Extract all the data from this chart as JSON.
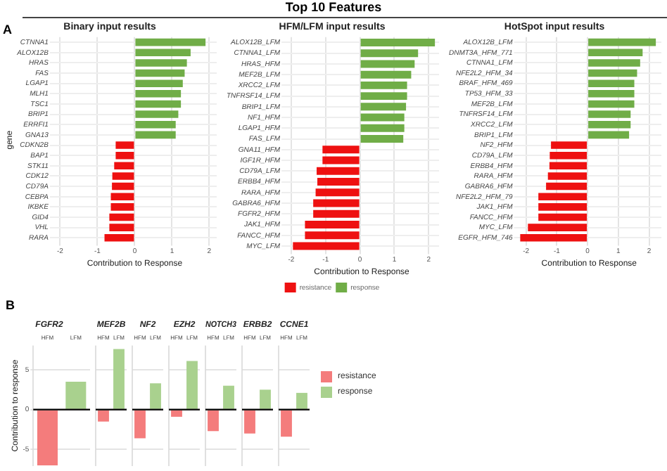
{
  "chart_data": [
    {
      "type": "bar",
      "orientation": "horizontal",
      "title": "Binary input results",
      "annotations": [
        "A"
      ],
      "xlabel": "Contribution to Response",
      "ylabel": "gene",
      "grid": true,
      "xlim": [
        -2.2,
        2.2
      ],
      "xticks": [
        -2,
        -1,
        0,
        1,
        2
      ],
      "categories": [
        "CTNNA1",
        "ALOX12B",
        "HRAS",
        "FAS",
        "LGAP1",
        "MLH1",
        "TSC1",
        "BRIP1",
        "ERRFI1",
        "GNA13",
        "CDKN2B",
        "BAP1",
        "STK11",
        "CDK12",
        "CD79A",
        "CEBPA",
        "IKBKE",
        "GID4",
        "VHL",
        "RARA"
      ],
      "values": [
        1.9,
        1.5,
        1.4,
        1.34,
        1.29,
        1.24,
        1.24,
        1.17,
        1.1,
        1.1,
        -0.51,
        -0.51,
        -0.55,
        -0.6,
        -0.61,
        -0.64,
        -0.64,
        -0.68,
        -0.68,
        -0.81
      ],
      "colors": [
        "#70ad47",
        "#70ad47",
        "#70ad47",
        "#70ad47",
        "#70ad47",
        "#70ad47",
        "#70ad47",
        "#70ad47",
        "#70ad47",
        "#70ad47",
        "#ee1111",
        "#ee1111",
        "#ee1111",
        "#ee1111",
        "#ee1111",
        "#ee1111",
        "#ee1111",
        "#ee1111",
        "#ee1111",
        "#ee1111"
      ]
    },
    {
      "type": "bar",
      "orientation": "horizontal",
      "title": "HFM/LFM input results",
      "annotations": [
        "Top 10 Features"
      ],
      "xlabel": "Contribution to Response",
      "grid": true,
      "legend": "bottom",
      "xlim": [
        -2.2,
        2.3
      ],
      "xticks": [
        -2,
        -1,
        0,
        1,
        2
      ],
      "categories": [
        "ALOX12B_LFM",
        "CTNNA1_LFM",
        "HRAS_HFM",
        "MEF2B_LFM",
        "XRCC2_LFM",
        "TNFRSF14_LFM",
        "BRIP1_LFM",
        "NF1_HFM",
        "LGAP1_HFM",
        "FAS_LFM",
        "GNA11_HFM",
        "IGF1R_HFM",
        "CD79A_LFM",
        "ERBB4_HFM",
        "RARA_HFM",
        "GABRA6_HFM",
        "FGFR2_HFM",
        "JAK1_HFM",
        "FANCC_HFM",
        "MYC_LFM"
      ],
      "series": [
        {
          "name": "resistance",
          "color": "#ee1111",
          "values": [
            null,
            null,
            null,
            null,
            null,
            null,
            null,
            null,
            null,
            null,
            -1.09,
            -1.09,
            -1.26,
            -1.24,
            -1.29,
            -1.36,
            -1.36,
            -1.6,
            -1.6,
            -1.95
          ]
        },
        {
          "name": "response",
          "color": "#70ad47",
          "values": [
            2.18,
            1.69,
            1.59,
            1.49,
            1.37,
            1.37,
            1.34,
            1.29,
            1.29,
            1.26,
            null,
            null,
            null,
            null,
            null,
            null,
            null,
            null,
            null,
            null
          ]
        }
      ]
    },
    {
      "type": "bar",
      "orientation": "horizontal",
      "title": "HotSpot input results",
      "xlabel": "Contribution to Response",
      "grid": true,
      "xlim": [
        -2.3,
        2.4
      ],
      "xticks": [
        -2,
        -1,
        0,
        1,
        2
      ],
      "categories": [
        "ALOX12B_LFM",
        "DNMT3A_HFM_771",
        "CTNNA1_LFM",
        "NFE2L2_HFM_34",
        "BRAF_HFM_469",
        "TP53_HFM_33",
        "MEF2B_LFM",
        "TNFRSF14_LFM",
        "XRCC2_LFM",
        "BRIP1_LFM",
        "NF2_HFM",
        "CD79A_LFM",
        "ERBB4_HFM",
        "RARA_HFM",
        "GABRA6_HFM",
        "NFE2L2_HFM_79",
        "JAK1_HFM",
        "FANCC_HFM",
        "MYC_LFM",
        "EGFR_HFM_746"
      ],
      "values": [
        2.22,
        1.79,
        1.71,
        1.61,
        1.52,
        1.52,
        1.52,
        1.4,
        1.4,
        1.35,
        -1.19,
        -1.23,
        -1.24,
        -1.29,
        -1.35,
        -1.6,
        -1.6,
        -1.6,
        -1.94,
        -2.19
      ],
      "colors": [
        "#70ad47",
        "#70ad47",
        "#70ad47",
        "#70ad47",
        "#70ad47",
        "#70ad47",
        "#70ad47",
        "#70ad47",
        "#70ad47",
        "#70ad47",
        "#ee1111",
        "#ee1111",
        "#ee1111",
        "#ee1111",
        "#ee1111",
        "#ee1111",
        "#ee1111",
        "#ee1111",
        "#ee1111",
        "#ee1111"
      ]
    },
    {
      "type": "bar",
      "title": "FGFR2",
      "annotations": [
        "B"
      ],
      "ylabel": "Contribution to response",
      "grid": "y",
      "ylim": [
        -7,
        8
      ],
      "yticks": [
        -5,
        0,
        5
      ],
      "categories": [
        "HFM",
        "LFM"
      ],
      "values": [
        -7,
        3.5
      ],
      "colors": [
        "#f47c7c",
        "#a9d18e"
      ],
      "ref_lines": [
        {
          "axis": "y",
          "value": 0,
          "color": "#000000"
        }
      ]
    },
    {
      "type": "bar",
      "title": "MEF2B",
      "grid": "y",
      "tick_labels": "x",
      "ylim": [
        -7,
        8
      ],
      "yticks": [
        -5,
        0,
        5
      ],
      "categories": [
        "HFM",
        "LFM"
      ],
      "values": [
        -1.5,
        7.6
      ],
      "colors": [
        "#f47c7c",
        "#a9d18e"
      ],
      "ref_lines": [
        {
          "axis": "y",
          "value": 0,
          "color": "#000000"
        }
      ]
    },
    {
      "type": "bar",
      "title": "NF2",
      "grid": "y",
      "tick_labels": "x",
      "ylim": [
        -7,
        8
      ],
      "yticks": [
        -5,
        0,
        5
      ],
      "categories": [
        "HFM",
        "LFM"
      ],
      "values": [
        -3.6,
        3.3
      ],
      "colors": [
        "#f47c7c",
        "#a9d18e"
      ],
      "ref_lines": [
        {
          "axis": "y",
          "value": 0,
          "color": "#000000"
        }
      ]
    },
    {
      "type": "bar",
      "title": "EZH2",
      "grid": "y",
      "tick_labels": "x",
      "ylim": [
        -7,
        8
      ],
      "yticks": [
        -5,
        0,
        5
      ],
      "categories": [
        "HFM",
        "LFM"
      ],
      "values": [
        -0.9,
        6.1
      ],
      "colors": [
        "#f47c7c",
        "#a9d18e"
      ],
      "ref_lines": [
        {
          "axis": "y",
          "value": 0,
          "color": "#000000"
        }
      ]
    },
    {
      "type": "bar",
      "title": "NOTCH3",
      "grid": "y",
      "tick_labels": "x",
      "ylim": [
        -7,
        8
      ],
      "yticks": [
        -5,
        0,
        5
      ],
      "categories": [
        "HFM",
        "LFM"
      ],
      "values": [
        -2.7,
        3.0
      ],
      "colors": [
        "#f47c7c",
        "#a9d18e"
      ],
      "ref_lines": [
        {
          "axis": "y",
          "value": 0,
          "color": "#000000"
        }
      ]
    },
    {
      "type": "bar",
      "title": "ERBB2",
      "grid": "y",
      "tick_labels": "x",
      "ylim": [
        -7,
        8
      ],
      "yticks": [
        -5,
        0,
        5
      ],
      "categories": [
        "HFM",
        "LFM"
      ],
      "values": [
        -3.0,
        2.5
      ],
      "colors": [
        "#f47c7c",
        "#a9d18e"
      ],
      "ref_lines": [
        {
          "axis": "y",
          "value": 0,
          "color": "#000000"
        }
      ]
    },
    {
      "type": "bar",
      "title": "CCNE1",
      "grid": "y",
      "tick_labels": "x",
      "legend": "right",
      "ylim": [
        -7,
        8
      ],
      "yticks": [
        -5,
        0,
        5
      ],
      "categories": [
        "HFM",
        "LFM"
      ],
      "series": [
        {
          "name": "resistance",
          "color": "#f47c7c",
          "values": [
            -3.4,
            null
          ]
        },
        {
          "name": "response",
          "color": "#a9d18e",
          "values": [
            null,
            2.1
          ]
        }
      ],
      "ref_lines": [
        {
          "axis": "y",
          "value": 0,
          "color": "#000000"
        }
      ]
    }
  ]
}
